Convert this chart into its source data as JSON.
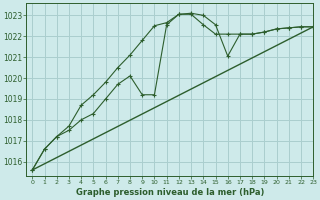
{
  "title": "Graphe pression niveau de la mer (hPa)",
  "background_color": "#ceeaea",
  "grid_color": "#aacece",
  "line_color": "#2d5e2d",
  "xlim": [
    -0.5,
    23
  ],
  "ylim": [
    1015.3,
    1023.6
  ],
  "yticks": [
    1016,
    1017,
    1018,
    1019,
    1020,
    1021,
    1022,
    1023
  ],
  "xticks": [
    0,
    1,
    2,
    3,
    4,
    5,
    6,
    7,
    8,
    9,
    10,
    11,
    12,
    13,
    14,
    15,
    16,
    17,
    18,
    19,
    20,
    21,
    22,
    23
  ],
  "series1_x": [
    0,
    1,
    2,
    3,
    4,
    5,
    6,
    7,
    8,
    9,
    10,
    11,
    12,
    13,
    14,
    15,
    16,
    17,
    18,
    19,
    20,
    21,
    22,
    23
  ],
  "series1_y": [
    1015.6,
    1016.6,
    1017.2,
    1017.5,
    1018.0,
    1018.3,
    1019.0,
    1019.7,
    1020.1,
    1019.2,
    1019.2,
    1022.55,
    1023.05,
    1023.05,
    1022.55,
    1022.1,
    1022.1,
    1022.1,
    1022.1,
    1022.2,
    1022.35,
    1022.4,
    1022.45,
    1022.45
  ],
  "series2_x": [
    0,
    1,
    2,
    3,
    4,
    5,
    6,
    7,
    8,
    9,
    10,
    11,
    12,
    13,
    14,
    15,
    16,
    17,
    18,
    19,
    20,
    21,
    22,
    23
  ],
  "series2_y": [
    1015.6,
    1016.6,
    1017.2,
    1017.7,
    1018.7,
    1019.2,
    1019.8,
    1020.5,
    1021.1,
    1021.8,
    1022.5,
    1022.65,
    1023.05,
    1023.1,
    1023.0,
    1022.55,
    1021.05,
    1022.1,
    1022.1,
    1022.2,
    1022.35,
    1022.4,
    1022.45,
    1022.45
  ],
  "series3_x": [
    0,
    23
  ],
  "series3_y": [
    1015.6,
    1022.45
  ]
}
